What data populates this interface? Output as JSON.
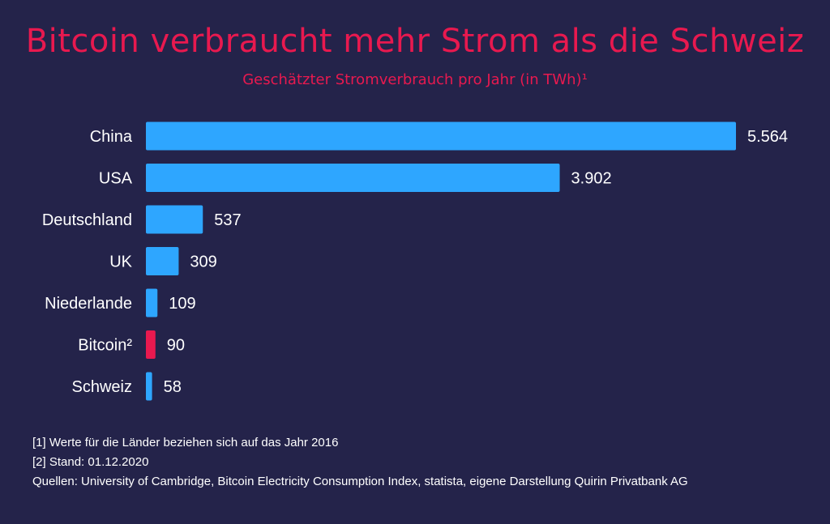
{
  "title": "Bitcoin verbraucht mehr Strom als die Schweiz",
  "subtitle": "Geschätzter Stromverbrauch pro Jahr (in TWh)¹",
  "chart_data": {
    "type": "bar",
    "orientation": "horizontal",
    "categories": [
      "China",
      "USA",
      "Deutschland",
      "UK",
      "Niederlande",
      "Bitcoin²",
      "Schweiz"
    ],
    "values": [
      5564,
      3902,
      537,
      309,
      109,
      90,
      58
    ],
    "value_labels": [
      "5.564",
      "3.902",
      "537",
      "309",
      "109",
      "90",
      "58"
    ],
    "highlight_category": "Bitcoin²",
    "colors": {
      "default": "#2ea6ff",
      "highlight": "#e8194f",
      "text": "#ffffff",
      "background": "#24234a"
    },
    "grid": false
  },
  "footnotes": [
    "[1] Werte für die Länder beziehen sich auf das Jahr 2016",
    "[2] Stand: 01.12.2020",
    "Quellen: University of Cambridge, Bitcoin Electricity Consumption Index, statista, eigene Darstellung Quirin Privatbank AG"
  ]
}
